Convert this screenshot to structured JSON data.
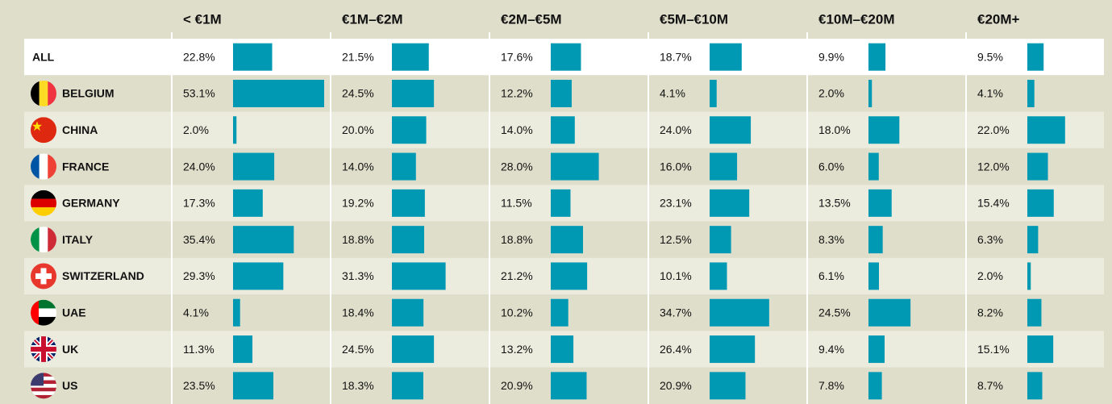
{
  "table": {
    "columns": [
      "< €1M",
      "€1M–€2M",
      "€2M–€5M",
      "€5M–€10M",
      "€10M–€20M",
      "€20M+"
    ],
    "rows": [
      {
        "name": "ALL",
        "values": [
          22.8,
          21.5,
          17.6,
          18.7,
          9.9,
          9.5
        ],
        "value_labels": [
          "22.8%",
          "21.5%",
          "17.6%",
          "18.7%",
          "9.9%",
          "9.5%"
        ]
      },
      {
        "name": "BELGIUM",
        "values": [
          53.1,
          24.5,
          12.2,
          4.1,
          2.0,
          4.1
        ],
        "value_labels": [
          "53.1%",
          "24.5%",
          "12.2%",
          "4.1%",
          "2.0%",
          "4.1%"
        ]
      },
      {
        "name": "CHINA",
        "values": [
          2.0,
          20.0,
          14.0,
          24.0,
          18.0,
          22.0
        ],
        "value_labels": [
          "2.0%",
          "20.0%",
          "14.0%",
          "24.0%",
          "18.0%",
          "22.0%"
        ]
      },
      {
        "name": "FRANCE",
        "values": [
          24.0,
          14.0,
          28.0,
          16.0,
          6.0,
          12.0
        ],
        "value_labels": [
          "24.0%",
          "14.0%",
          "28.0%",
          "16.0%",
          "6.0%",
          "12.0%"
        ]
      },
      {
        "name": "GERMANY",
        "values": [
          17.3,
          19.2,
          11.5,
          23.1,
          13.5,
          15.4
        ],
        "value_labels": [
          "17.3%",
          "19.2%",
          "11.5%",
          "23.1%",
          "13.5%",
          "15.4%"
        ]
      },
      {
        "name": "ITALY",
        "values": [
          35.4,
          18.8,
          18.8,
          12.5,
          8.3,
          6.3
        ],
        "value_labels": [
          "35.4%",
          "18.8%",
          "18.8%",
          "12.5%",
          "8.3%",
          "6.3%"
        ]
      },
      {
        "name": "SWITZERLAND",
        "values": [
          29.3,
          31.3,
          21.2,
          10.1,
          6.1,
          2.0
        ],
        "value_labels": [
          "29.3%",
          "31.3%",
          "21.2%",
          "10.1%",
          "6.1%",
          "2.0%"
        ]
      },
      {
        "name": "UAE",
        "values": [
          4.1,
          18.4,
          10.2,
          34.7,
          24.5,
          8.2
        ],
        "value_labels": [
          "4.1%",
          "18.4%",
          "10.2%",
          "34.7%",
          "24.5%",
          "8.2%"
        ]
      },
      {
        "name": "UK",
        "values": [
          11.3,
          24.5,
          13.2,
          26.4,
          9.4,
          15.1
        ],
        "value_labels": [
          "11.3%",
          "24.5%",
          "13.2%",
          "26.4%",
          "9.4%",
          "15.1%"
        ]
      },
      {
        "name": "US",
        "values": [
          23.5,
          18.3,
          20.9,
          20.9,
          7.8,
          8.7
        ],
        "value_labels": [
          "23.5%",
          "18.3%",
          "20.9%",
          "20.9%",
          "7.8%",
          "8.7%"
        ]
      }
    ],
    "color": "#0099b4"
  }
}
